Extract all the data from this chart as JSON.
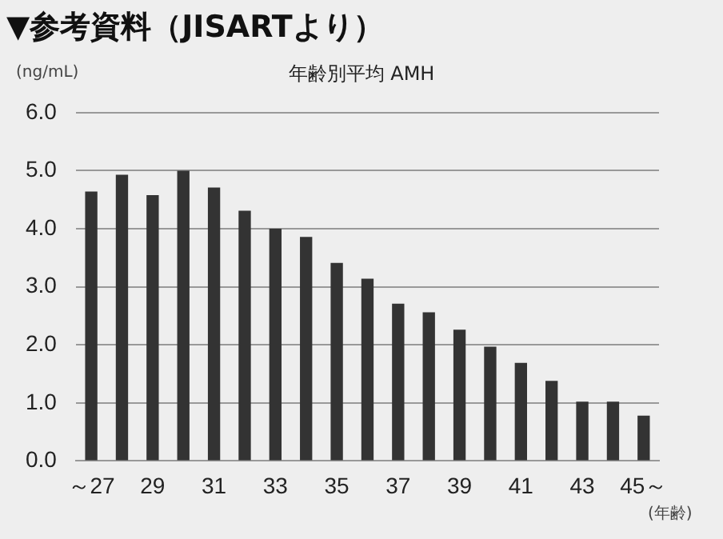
{
  "chart_data": {
    "type": "bar",
    "title": "▼参考資料（JISARTより）",
    "subtitle": "年齢別平均 AMH",
    "ylabel": "(ng/mL)",
    "xlabel": "(年齢)",
    "categories": [
      "～27",
      null,
      "29",
      null,
      "31",
      null,
      "33",
      null,
      "35",
      null,
      "37",
      null,
      "39",
      null,
      "41",
      null,
      "43",
      null,
      "45～"
    ],
    "values": [
      4.64,
      4.93,
      4.58,
      5.0,
      4.71,
      4.31,
      4.0,
      3.86,
      3.41,
      3.14,
      2.71,
      2.56,
      2.26,
      1.97,
      1.69,
      1.38,
      1.02,
      1.02,
      0.78
    ],
    "color": "#333333",
    "ylim": [
      0,
      6
    ],
    "yticks": [
      {
        "value": 0,
        "label": "0.0"
      },
      {
        "value": 1,
        "label": "1.0"
      },
      {
        "value": 2,
        "label": "2.0"
      },
      {
        "value": 3,
        "label": "3.0"
      },
      {
        "value": 4,
        "label": "4.0"
      },
      {
        "value": 5,
        "label": "5.0"
      },
      {
        "value": 6,
        "label": "6.0"
      }
    ],
    "grid": "y",
    "legend": false
  }
}
